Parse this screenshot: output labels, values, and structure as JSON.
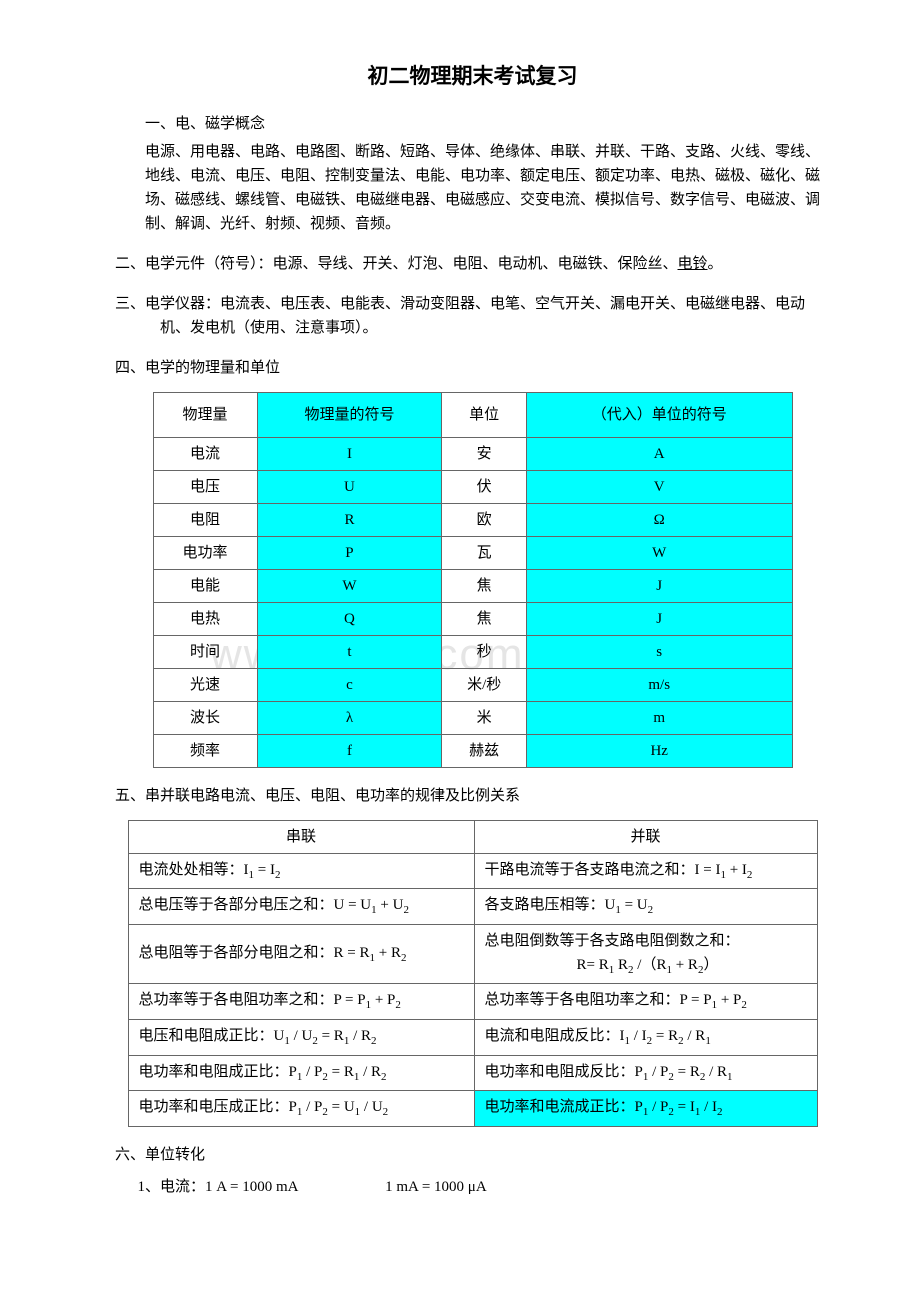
{
  "document": {
    "title": "初二物理期末考试复习",
    "watermark": "www.zixin.com.cn",
    "sections": {
      "s1": {
        "heading": "一、电、磁学概念",
        "body": "电源、用电器、电路、电路图、断路、短路、导体、绝缘体、串联、并联、干路、支路、火线、零线、地线、电流、电压、电阻、控制变量法、电能、电功率、额定电压、额定功率、电热、磁极、磁化、磁场、磁感线、螺线管、电磁铁、电磁继电器、电磁感应、交变电流、模拟信号、数字信号、电磁波、调制、解调、光纤、射频、视频、音频。"
      },
      "s2": {
        "text_prefix": "二、电学元件（符号）：电源、导线、开关、灯泡、电阻、电动机、电磁铁、保险丝、",
        "underlined": "电铃",
        "text_suffix": "。"
      },
      "s3": {
        "text": "三、电学仪器：电流表、电压表、电能表、滑动变阻器、电笔、空气开关、漏电开关、电磁继电器、电动机、发电机（使用、注意事项）。"
      },
      "s4": {
        "heading": "四、电学的物理量和单位"
      },
      "s5": {
        "heading": "五、串并联电路电流、电压、电阻、电功率的规律及比例关系"
      },
      "s6": {
        "heading": "六、单位转化",
        "line1a": "1、电流：1 A = 1000 mA",
        "line1b": "1 mA = 1000 μA"
      }
    },
    "table1": {
      "headers": [
        "物理量",
        "物理量的符号",
        "单位",
        "（代入）单位的符号"
      ],
      "rows": [
        [
          "电流",
          "I",
          "安",
          "A"
        ],
        [
          "电压",
          "U",
          "伏",
          "V"
        ],
        [
          "电阻",
          "R",
          "欧",
          "Ω"
        ],
        [
          "电功率",
          "P",
          "瓦",
          "W"
        ],
        [
          "电能",
          "W",
          "焦",
          "J"
        ],
        [
          "电热",
          "Q",
          "焦",
          "J"
        ],
        [
          "时间",
          "t",
          "秒",
          "s"
        ],
        [
          "光速",
          "c",
          "米/秒",
          "m/s"
        ],
        [
          "波长",
          "λ",
          "米",
          "m"
        ],
        [
          "频率",
          "f",
          "赫兹",
          "Hz"
        ]
      ],
      "header_bg": "#00ffff",
      "col_bg": "#00ffff"
    },
    "table2": {
      "headers": [
        "串联",
        "并联"
      ],
      "rows": [
        {
          "left": {
            "parts": [
              "电流处处相等：I",
              "1",
              " = I",
              "2"
            ]
          },
          "right": {
            "parts": [
              "干路电流等于各支路电流之和：I = I",
              "1",
              " + I",
              "2"
            ]
          },
          "hl": false
        },
        {
          "left": {
            "parts": [
              "总电压等于各部分电压之和：U = U",
              "1",
              " + U",
              "2"
            ]
          },
          "right": {
            "parts": [
              "各支路电压相等：U",
              "1",
              " = U",
              "2"
            ]
          },
          "hl": false
        },
        {
          "left": {
            "parts": [
              "总电阻等于各部分电阻之和：R = R",
              "1",
              " + R",
              "2"
            ]
          },
          "right": {
            "line1": "总电阻倒数等于各支路电阻倒数之和：",
            "line2parts": [
              "R= R",
              "1",
              " R",
              "2",
              " /（R",
              "1",
              " + R",
              "2",
              "）"
            ]
          },
          "hl": false,
          "multiline": true
        },
        {
          "left": {
            "parts": [
              "总功率等于各电阻功率之和：P = P",
              "1",
              " + P",
              "2"
            ]
          },
          "right": {
            "parts": [
              "总功率等于各电阻功率之和：P = P",
              "1",
              " + P",
              "2"
            ]
          },
          "hl": false
        },
        {
          "left": {
            "parts": [
              "电压和电阻成正比：U",
              "1",
              " / U",
              "2",
              " = R",
              "1",
              " / R",
              "2"
            ]
          },
          "right": {
            "parts": [
              "电流和电阻成反比：I",
              "1",
              " / I",
              "2",
              " = R",
              "2",
              " / R",
              "1"
            ]
          },
          "hl": false
        },
        {
          "left": {
            "parts": [
              "电功率和电阻成正比：P",
              "1",
              " / P",
              "2",
              " = R",
              "1",
              " / R",
              "2"
            ]
          },
          "right": {
            "parts": [
              "电功率和电阻成反比：P",
              "1",
              " / P",
              "2",
              " = R",
              "2",
              " / R",
              "1"
            ]
          },
          "hl": false
        },
        {
          "left": {
            "parts": [
              "电功率和电压成正比：P",
              "1",
              " / P",
              "2",
              " = U",
              "1",
              " / U",
              "2"
            ]
          },
          "right": {
            "parts": [
              "电功率和电流成正比：P",
              "1",
              " / P",
              "2",
              " = I",
              "1",
              " / I",
              "2"
            ]
          },
          "hl_right": true
        }
      ]
    }
  }
}
